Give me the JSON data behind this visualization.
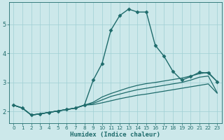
{
  "xlabel": "Humidex (Indice chaleur)",
  "bg_color": "#cce8ea",
  "grid_color": "#9fcfd4",
  "line_color": "#1e6b6b",
  "xlim": [
    -0.5,
    23.5
  ],
  "ylim": [
    1.6,
    5.75
  ],
  "xticks": [
    0,
    1,
    2,
    3,
    4,
    5,
    6,
    7,
    8,
    9,
    10,
    11,
    12,
    13,
    14,
    15,
    16,
    17,
    18,
    19,
    20,
    21,
    22,
    23
  ],
  "yticks": [
    2,
    3,
    4,
    5
  ],
  "lines": [
    {
      "x": [
        0,
        1,
        2,
        3,
        4,
        5,
        6,
        7,
        8,
        9,
        10,
        11,
        12,
        13,
        14,
        15,
        16,
        17,
        18,
        19,
        20,
        21,
        22,
        23
      ],
      "y": [
        2.22,
        2.12,
        1.88,
        1.92,
        1.97,
        2.02,
        2.07,
        2.12,
        2.22,
        3.08,
        3.65,
        4.8,
        5.3,
        5.52,
        5.42,
        5.42,
        4.28,
        3.9,
        3.38,
        3.08,
        3.2,
        3.35,
        3.32,
        3.03
      ],
      "marker": "D",
      "markersize": 2.5,
      "linewidth": 1.0
    },
    {
      "x": [
        0,
        1,
        2,
        3,
        4,
        5,
        6,
        7,
        8,
        9,
        10,
        11,
        12,
        13,
        14,
        15,
        16,
        17,
        18,
        19,
        20,
        21,
        22,
        23
      ],
      "y": [
        2.22,
        2.12,
        1.88,
        1.92,
        1.97,
        2.02,
        2.07,
        2.12,
        2.22,
        2.32,
        2.5,
        2.62,
        2.72,
        2.82,
        2.9,
        2.96,
        3.0,
        3.05,
        3.1,
        3.15,
        3.22,
        3.3,
        3.35,
        3.03
      ],
      "marker": null,
      "markersize": 0,
      "linewidth": 0.9
    },
    {
      "x": [
        0,
        1,
        2,
        3,
        4,
        5,
        6,
        7,
        8,
        9,
        10,
        11,
        12,
        13,
        14,
        15,
        16,
        17,
        18,
        19,
        20,
        21,
        22,
        23
      ],
      "y": [
        2.22,
        2.12,
        1.88,
        1.92,
        1.97,
        2.02,
        2.07,
        2.12,
        2.22,
        2.28,
        2.4,
        2.52,
        2.6,
        2.68,
        2.75,
        2.8,
        2.85,
        2.9,
        2.95,
        3.0,
        3.08,
        3.18,
        3.22,
        2.65
      ],
      "marker": null,
      "markersize": 0,
      "linewidth": 0.9
    },
    {
      "x": [
        0,
        1,
        2,
        3,
        4,
        5,
        6,
        7,
        8,
        9,
        10,
        11,
        12,
        13,
        14,
        15,
        16,
        17,
        18,
        19,
        20,
        21,
        22,
        23
      ],
      "y": [
        2.22,
        2.12,
        1.88,
        1.92,
        1.97,
        2.02,
        2.07,
        2.12,
        2.22,
        2.24,
        2.3,
        2.37,
        2.44,
        2.5,
        2.56,
        2.6,
        2.65,
        2.7,
        2.75,
        2.8,
        2.85,
        2.9,
        2.95,
        2.63
      ],
      "marker": null,
      "markersize": 0,
      "linewidth": 0.9
    }
  ]
}
